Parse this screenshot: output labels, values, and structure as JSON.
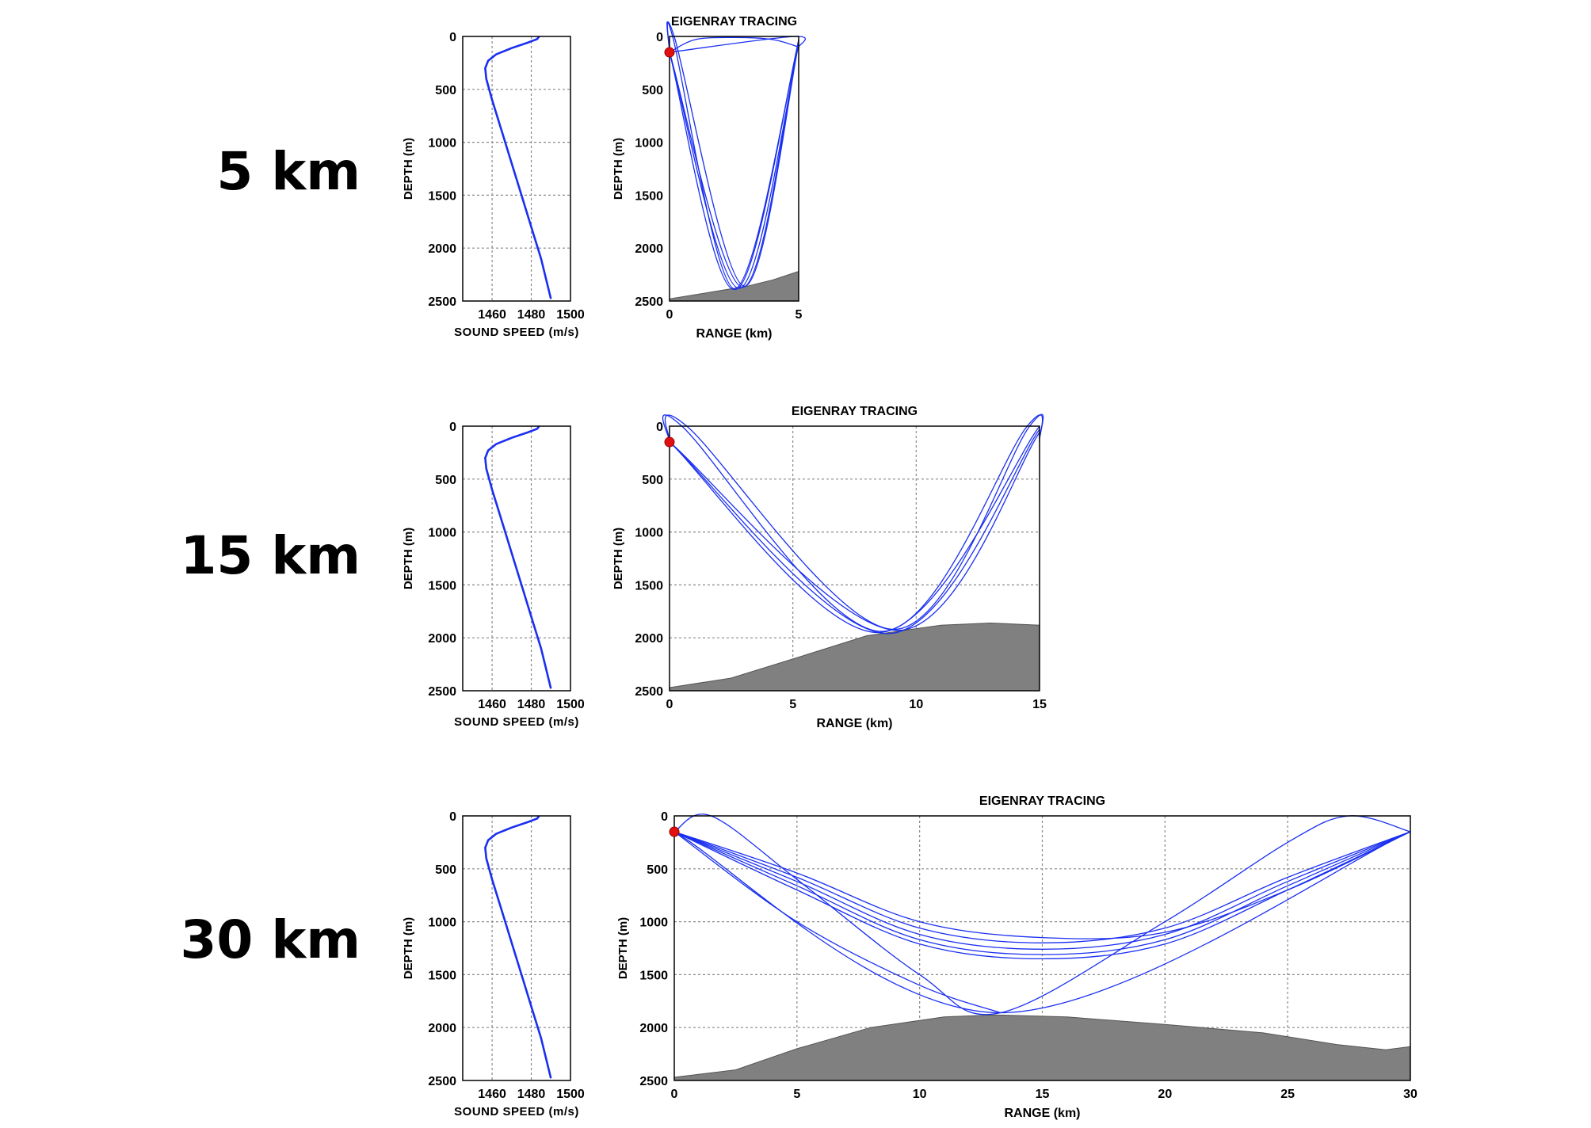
{
  "rows": [
    {
      "label": "5 km"
    },
    {
      "label": "15 km"
    },
    {
      "label": "30 km"
    }
  ],
  "colors": {
    "ray": "#1a2ff0",
    "profile": "#1a2ff0",
    "seabed": "#808080",
    "source": "#e01010",
    "grid": "#888888"
  },
  "chart_data": [
    {
      "type": "line",
      "panel": "sound-speed-profile",
      "rows": [
        "5 km",
        "15 km",
        "30 km"
      ],
      "xlabel": "SOUND SPEED (m/s)",
      "ylabel": "DEPTH (m)",
      "xlim": [
        1445,
        1500
      ],
      "ylim": [
        2500,
        0
      ],
      "xticks": [
        1460,
        1480,
        1500
      ],
      "yticks": [
        0,
        500,
        1000,
        1500,
        2000,
        2500
      ],
      "grid": true,
      "series": [
        {
          "x": [
            1484,
            1483,
            1478,
            1470,
            1462,
            1458,
            1456.5,
            1457,
            1460,
            1465,
            1470,
            1475,
            1480,
            1485,
            1490
          ],
          "y": [
            0,
            25,
            60,
            110,
            170,
            230,
            300,
            400,
            600,
            900,
            1200,
            1500,
            1800,
            2100,
            2480
          ]
        }
      ]
    },
    {
      "type": "line",
      "panel": "eigenray-tracing",
      "row": "5 km",
      "title": "EIGENRAY TRACING",
      "xlabel": "RANGE (km)",
      "ylabel": "DEPTH (m)",
      "xlim": [
        0,
        5
      ],
      "ylim": [
        2500,
        0
      ],
      "xticks": [
        0,
        5
      ],
      "yticks": [
        0,
        500,
        1000,
        1500,
        2000,
        2500
      ],
      "source": {
        "range": 0,
        "depth": 150
      },
      "seabed": {
        "x": [
          0,
          1,
          2,
          3,
          4,
          5
        ],
        "y": [
          2480,
          2440,
          2400,
          2360,
          2300,
          2220
        ]
      },
      "series": [
        {
          "x": [
            0,
            2.5,
            5
          ],
          "y": [
            150,
            2390,
            50
          ]
        },
        {
          "x": [
            0,
            2.7,
            5
          ],
          "y": [
            150,
            2380,
            80
          ]
        },
        {
          "x": [
            0,
            2.85,
            5
          ],
          "y": [
            150,
            2370,
            30
          ]
        },
        {
          "x": [
            0,
            0.12,
            2.55,
            5
          ],
          "y": [
            150,
            0,
            2390,
            40
          ]
        },
        {
          "x": [
            0,
            0.18,
            2.9,
            5
          ],
          "y": [
            150,
            0,
            2360,
            70
          ]
        },
        {
          "x": [
            0,
            1,
            2.5,
            4,
            5
          ],
          "y": [
            150,
            30,
            10,
            30,
            100
          ]
        },
        {
          "x": [
            0,
            4.85,
            5
          ],
          "y": [
            150,
            0,
            100
          ]
        }
      ]
    },
    {
      "type": "line",
      "panel": "eigenray-tracing",
      "row": "15 km",
      "title": "EIGENRAY TRACING",
      "xlabel": "RANGE (km)",
      "ylabel": "DEPTH (m)",
      "xlim": [
        0,
        15
      ],
      "ylim": [
        2500,
        0
      ],
      "xticks": [
        0,
        5,
        10,
        15
      ],
      "yticks": [
        0,
        500,
        1000,
        1500,
        2000,
        2500
      ],
      "grid": true,
      "source": {
        "range": 0,
        "depth": 150
      },
      "seabed": {
        "x": [
          0,
          2.5,
          5,
          8,
          11,
          13,
          15
        ],
        "y": [
          2470,
          2380,
          2200,
          1980,
          1880,
          1860,
          1880
        ]
      },
      "series": [
        {
          "x": [
            0,
            8.5,
            15
          ],
          "y": [
            150,
            1950,
            0
          ]
        },
        {
          "x": [
            0,
            8.9,
            15
          ],
          "y": [
            150,
            1960,
            30
          ]
        },
        {
          "x": [
            0,
            0.5,
            8.6,
            14.5,
            15
          ],
          "y": [
            150,
            0,
            1940,
            0,
            150
          ]
        },
        {
          "x": [
            0,
            0.7,
            9.1,
            14.6,
            15
          ],
          "y": [
            150,
            0,
            1920,
            0,
            120
          ]
        },
        {
          "x": [
            0,
            9.3,
            15
          ],
          "y": [
            150,
            1930,
            60
          ]
        }
      ]
    },
    {
      "type": "line",
      "panel": "eigenray-tracing",
      "row": "30 km",
      "title": "EIGENRAY TRACING",
      "xlabel": "RANGE (km)",
      "ylabel": "DEPTH (m)",
      "xlim": [
        0,
        30
      ],
      "ylim": [
        2500,
        0
      ],
      "xticks": [
        0,
        5,
        10,
        15,
        20,
        25,
        30
      ],
      "yticks": [
        0,
        500,
        1000,
        1500,
        2000,
        2500
      ],
      "grid": true,
      "source": {
        "range": 0,
        "depth": 150
      },
      "seabed": {
        "x": [
          0,
          2.5,
          5,
          8,
          11,
          13,
          16,
          20,
          24,
          27,
          29,
          30
        ],
        "y": [
          2470,
          2400,
          2200,
          2000,
          1900,
          1880,
          1900,
          1970,
          2050,
          2160,
          2210,
          2180
        ]
      },
      "series": [
        {
          "x": [
            0,
            5,
            10,
            15,
            20,
            25,
            30
          ],
          "y": [
            150,
            580,
            1060,
            1200,
            1060,
            580,
            150
          ]
        },
        {
          "x": [
            0,
            5,
            10,
            15,
            20,
            25,
            30
          ],
          "y": [
            150,
            620,
            1120,
            1260,
            1120,
            620,
            150
          ]
        },
        {
          "x": [
            0,
            5,
            10,
            15,
            20,
            25,
            30
          ],
          "y": [
            150,
            660,
            1170,
            1310,
            1170,
            660,
            150
          ]
        },
        {
          "x": [
            0,
            5,
            10,
            15,
            20,
            25,
            30
          ],
          "y": [
            150,
            700,
            1210,
            1350,
            1210,
            700,
            150
          ]
        },
        {
          "x": [
            0,
            5,
            10,
            15,
            20,
            25,
            30
          ],
          "y": [
            150,
            540,
            1000,
            1150,
            1100,
            700,
            150
          ]
        },
        {
          "x": [
            0,
            13.3,
            30
          ],
          "y": [
            150,
            1860,
            150
          ]
        },
        {
          "x": [
            0,
            1.5,
            5,
            10,
            13.3,
            20,
            25,
            27.5,
            30
          ],
          "y": [
            150,
            0,
            600,
            1500,
            1860,
            1000,
            250,
            0,
            150
          ]
        },
        {
          "x": [
            0,
            5,
            10,
            13.3
          ],
          "y": [
            150,
            1000,
            1600,
            1860
          ]
        }
      ]
    }
  ]
}
